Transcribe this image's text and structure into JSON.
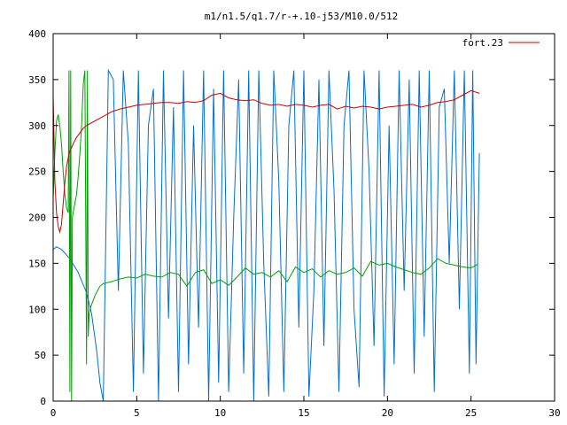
{
  "chart_data": {
    "type": "line",
    "title": "m1/n1.5/q1.7/r-+.10-j53/M10.0/512",
    "xlabel": "",
    "ylabel": "",
    "xlim": [
      0,
      30
    ],
    "ylim": [
      0,
      400
    ],
    "x_ticks": [
      "0",
      "5",
      "10",
      "15",
      "20",
      "25",
      "30"
    ],
    "y_ticks": [
      "0",
      "50",
      "100",
      "150",
      "200",
      "250",
      "300",
      "350",
      "400"
    ],
    "grid": false,
    "legend_position": "top-right",
    "series": [
      {
        "name": "fort.23",
        "color": "#cc0000",
        "x": [
          0,
          0.1,
          0.2,
          0.3,
          0.4,
          0.5,
          0.6,
          0.7,
          0.8,
          0.9,
          1.0,
          1.2,
          1.4,
          1.6,
          1.8,
          2.0,
          2.5,
          3.0,
          3.5,
          4.0,
          4.5,
          5.0,
          5.5,
          6.0,
          6.5,
          7.0,
          7.5,
          8.0,
          8.5,
          9.0,
          9.5,
          10.0,
          10.5,
          11.0,
          11.5,
          12.0,
          12.5,
          13.0,
          13.5,
          14.0,
          14.5,
          15.0,
          15.5,
          16.0,
          16.5,
          17.0,
          17.5,
          18.0,
          18.5,
          19.0,
          19.5,
          20.0,
          20.5,
          21.0,
          21.5,
          22.0,
          22.5,
          23.0,
          23.5,
          24.0,
          24.5,
          25.0,
          25.5
        ],
        "values": [
          333,
          240,
          205,
          190,
          184,
          192,
          215,
          238,
          255,
          265,
          272,
          280,
          287,
          292,
          297,
          300,
          305,
          310,
          315,
          318,
          320,
          322,
          323,
          324,
          325,
          325,
          324,
          326,
          325,
          327,
          333,
          335,
          330,
          328,
          327,
          328,
          324,
          322,
          323,
          321,
          323,
          322,
          320,
          322,
          323,
          318,
          321,
          319,
          321,
          320,
          318,
          320,
          321,
          322,
          323,
          320,
          322,
          325,
          326,
          328,
          333,
          338,
          335
        ]
      },
      {
        "name": "",
        "color": "#00a000",
        "x": [
          0,
          0.1,
          0.2,
          0.3,
          0.4,
          0.5,
          0.6,
          0.7,
          0.8,
          0.9,
          0.95,
          1.0,
          1.05,
          1.1,
          1.15,
          1.2,
          1.3,
          1.4,
          1.5,
          1.6,
          1.7,
          1.8,
          1.9,
          2.0,
          2.05,
          2.1,
          2.15,
          2.2,
          2.3,
          2.5,
          2.8,
          3.0,
          3.5,
          4.0,
          4.5,
          5.0,
          5.5,
          6.0,
          6.5,
          7.0,
          7.5,
          8.0,
          8.5,
          9.0,
          9.5,
          10.0,
          10.5,
          11.0,
          11.5,
          12.0,
          12.5,
          13.0,
          13.5,
          14.0,
          14.5,
          15.0,
          15.5,
          16.0,
          16.5,
          17.0,
          17.5,
          18.0,
          18.5,
          19.0,
          19.5,
          20.0,
          20.5,
          21.0,
          21.5,
          22.0,
          22.5,
          23.0,
          23.5,
          24.0,
          24.5,
          25.0,
          25.4
        ],
        "values": [
          220,
          270,
          305,
          312,
          300,
          280,
          250,
          225,
          210,
          205,
          360,
          10,
          360,
          0,
          200,
          205,
          215,
          225,
          245,
          270,
          300,
          345,
          360,
          40,
          360,
          70,
          95,
          100,
          105,
          115,
          125,
          128,
          130,
          133,
          135,
          134,
          138,
          136,
          135,
          140,
          138,
          125,
          140,
          143,
          128,
          132,
          126,
          135,
          145,
          138,
          140,
          135,
          142,
          130,
          146,
          140,
          144,
          135,
          142,
          138,
          140,
          145,
          136,
          152,
          148,
          150,
          146,
          143,
          140,
          138,
          145,
          155,
          150,
          148,
          146,
          145,
          149
        ]
      },
      {
        "name": "",
        "color": "#0070d0",
        "x": [
          0,
          0.2,
          0.5,
          1.0,
          1.5,
          2.0,
          2.3,
          2.6,
          2.8,
          3.0,
          3.3,
          3.6,
          3.9,
          4.2,
          4.5,
          4.8,
          5.1,
          5.4,
          5.7,
          6.0,
          6.3,
          6.6,
          6.9,
          7.2,
          7.5,
          7.8,
          8.1,
          8.4,
          8.7,
          9.0,
          9.3,
          9.6,
          9.9,
          10.2,
          10.5,
          10.8,
          11.1,
          11.4,
          11.7,
          12.0,
          12.3,
          12.6,
          12.9,
          13.2,
          13.5,
          13.8,
          14.1,
          14.4,
          14.7,
          15.0,
          15.3,
          15.6,
          15.9,
          16.2,
          16.5,
          16.8,
          17.1,
          17.4,
          17.7,
          18.0,
          18.3,
          18.6,
          18.9,
          19.2,
          19.5,
          19.8,
          20.1,
          20.4,
          20.7,
          21.0,
          21.3,
          21.6,
          21.9,
          22.2,
          22.5,
          22.8,
          23.1,
          23.4,
          23.7,
          24.0,
          24.3,
          24.6,
          24.9,
          25.1,
          25.3,
          25.5
        ],
        "values": [
          165,
          168,
          165,
          155,
          140,
          118,
          95,
          55,
          20,
          0,
          360,
          350,
          120,
          360,
          280,
          10,
          360,
          30,
          300,
          340,
          0,
          360,
          90,
          320,
          10,
          360,
          40,
          300,
          80,
          360,
          0,
          340,
          20,
          360,
          10,
          200,
          350,
          30,
          360,
          0,
          360,
          150,
          5,
          360,
          240,
          10,
          300,
          360,
          80,
          360,
          5,
          120,
          350,
          60,
          360,
          230,
          10,
          300,
          360,
          100,
          15,
          360,
          250,
          60,
          360,
          5,
          300,
          40,
          360,
          120,
          350,
          30,
          360,
          70,
          360,
          10,
          320,
          340,
          150,
          360,
          100,
          360,
          30,
          360,
          40,
          270
        ]
      }
    ]
  }
}
